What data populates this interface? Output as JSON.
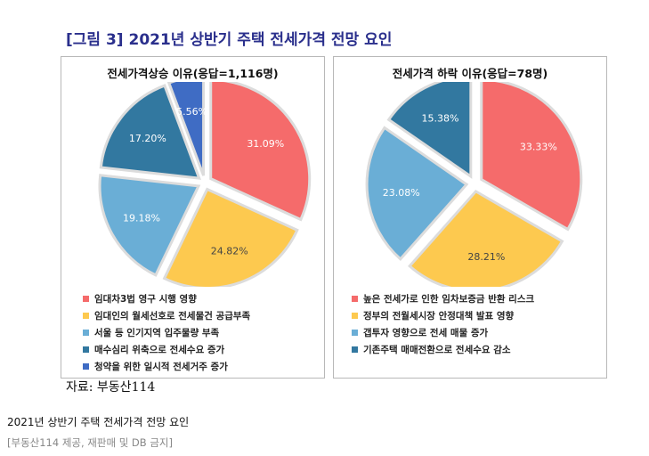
{
  "figure_title": "[그림 3] 2021년 상반기 주택 전세가격 전망 요인",
  "source_note": "자료: 부동산114",
  "caption": "2021년 상반기 주택 전세가격 전망 요인",
  "credit": "[부동산114 제공, 재판매 및 DB 금지]",
  "chart_data": [
    {
      "type": "pie",
      "title": "전세가격상승 이유(응답=1,116명)",
      "categories": [
        "임대차3법 영구 시행 영향",
        "임대인의 월세선호로 전세물건 공급부족",
        "서울 등 인기지역 입주물량 부족",
        "매수심리 위축으로 전세수요 증가",
        "청약을 위한 일시적 전세거주 증가"
      ],
      "values": [
        31.09,
        24.82,
        19.18,
        17.2,
        5.56
      ],
      "labels": [
        "31.09%",
        "24.82%",
        "19.18%",
        "17.20%",
        "5.56%"
      ],
      "colors": [
        "#f56b6b",
        "#fdc94f",
        "#6aaed6",
        "#3278a0",
        "#3f6cc4"
      ],
      "legend_position": "bottom"
    },
    {
      "type": "pie",
      "title": "전세가격 하락 이유(응답=78명)",
      "categories": [
        "높은 전세가로 인한 임차보증금 반환 리스크",
        "정부의 전월세시장 안정대책 발표 영향",
        "갭투자 영향으로 전세 매물 증가",
        "기존주택 매매전환으로 전세수요 감소"
      ],
      "values": [
        33.33,
        28.21,
        23.08,
        15.38
      ],
      "labels": [
        "33.33%",
        "28.21%",
        "23.08%",
        "15.38%"
      ],
      "colors": [
        "#f56b6b",
        "#fdc94f",
        "#6aaed6",
        "#3278a0"
      ],
      "legend_position": "bottom"
    }
  ]
}
